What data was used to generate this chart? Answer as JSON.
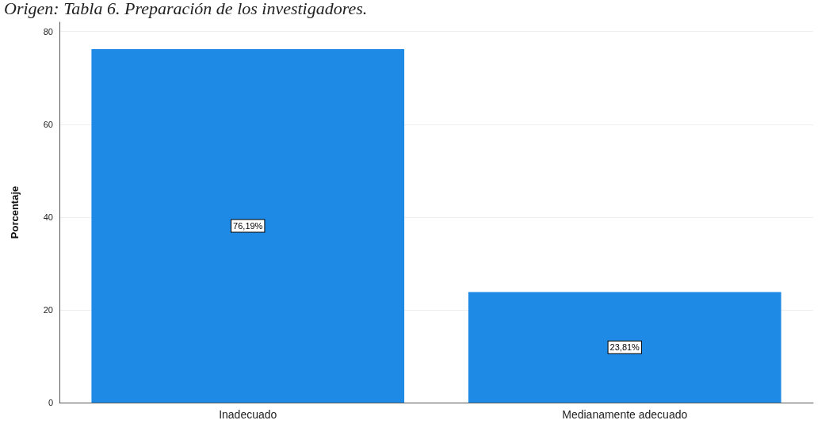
{
  "chart_data": {
    "type": "bar",
    "title": "Origen: Tabla 6. Preparación de los investigadores.",
    "ylabel": "Porcentaje",
    "categories": [
      "Inadecuado",
      "Medianamente adecuado"
    ],
    "values": [
      76.19,
      23.81
    ],
    "value_labels": [
      "76,19%",
      "23,81%"
    ],
    "color": "#1e8ae6",
    "ylim": [
      0,
      82
    ],
    "yticks": [
      0,
      20,
      40,
      60,
      80
    ],
    "grid": "y"
  }
}
